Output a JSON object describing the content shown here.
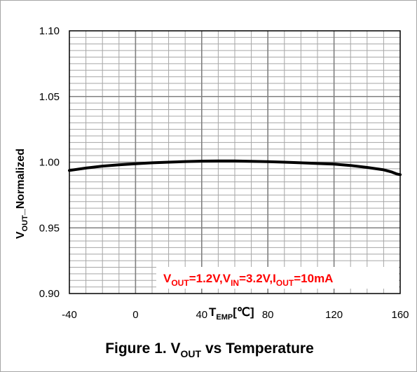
{
  "chart_data": {
    "type": "line",
    "title": "",
    "caption": {
      "prefix": "Figure 1. V",
      "sub": "OUT",
      "suffix": " vs Temperature"
    },
    "xlabel": {
      "main": "T",
      "sub": "EMP",
      "unit": "[℃]"
    },
    "ylabel": {
      "main": "V",
      "sub": "OUT",
      "suffix": "_Normalized"
    },
    "xlim": [
      -40,
      160
    ],
    "ylim": [
      0.9,
      1.1
    ],
    "x_ticks": [
      "-40",
      "0",
      "40",
      "80",
      "120",
      "160"
    ],
    "x_tick_values": [
      -40,
      0,
      40,
      80,
      120,
      160
    ],
    "y_ticks": [
      "1.10",
      "1.05",
      "1.00",
      "0.95",
      "0.90"
    ],
    "y_tick_values": [
      1.1,
      1.05,
      1.0,
      0.95,
      0.9
    ],
    "grid": true,
    "minor_x_step": 10,
    "minor_y_step": 0.005,
    "major_x_step": 40,
    "major_y_step": 0.05,
    "line_color": "#000000",
    "annotation": {
      "color": "#ff0000",
      "parts": [
        {
          "text": "V",
          "sub": false
        },
        {
          "text": "OUT",
          "sub": true
        },
        {
          "text": "=1.2V,V",
          "sub": false
        },
        {
          "text": "IN",
          "sub": true
        },
        {
          "text": "=3.2V,I",
          "sub": false
        },
        {
          "text": "OUT",
          "sub": true
        },
        {
          "text": "=10mA",
          "sub": false
        }
      ]
    },
    "series": [
      {
        "x": [
          -40,
          -30,
          -20,
          -10,
          0,
          10,
          20,
          30,
          40,
          50,
          60,
          70,
          80,
          90,
          100,
          110,
          120,
          130,
          140,
          150,
          155,
          158,
          160
        ],
        "y": [
          0.9937,
          0.9955,
          0.997,
          0.998,
          0.9988,
          0.9995,
          1.0,
          1.0005,
          1.0008,
          1.0009,
          1.0009,
          1.0007,
          1.0004,
          1.0,
          0.9995,
          0.999,
          0.9985,
          0.9975,
          0.996,
          0.9942,
          0.9925,
          0.991,
          0.9905
        ]
      }
    ]
  }
}
